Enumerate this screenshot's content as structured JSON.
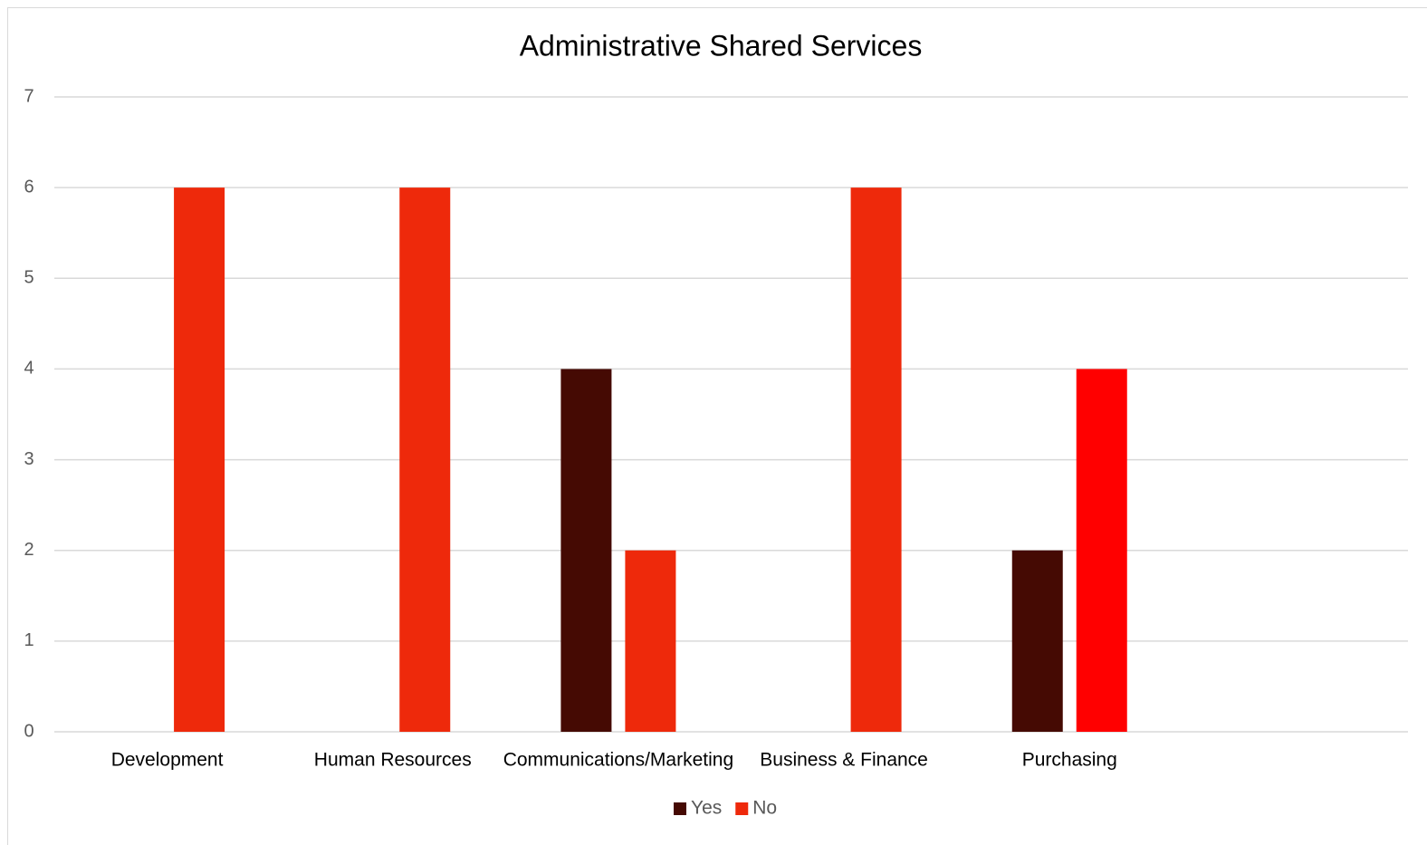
{
  "chart_data": {
    "type": "bar",
    "title": "Administrative Shared Services",
    "categories": [
      "Development",
      "Human Resources",
      "Communications/Marketing",
      "Business & Finance",
      "Purchasing",
      null
    ],
    "series": [
      {
        "name": "Yes",
        "color": "#450a03",
        "values": [
          0,
          0,
          4,
          0,
          2,
          null
        ]
      },
      {
        "name": "No",
        "color": "#ee290b",
        "colors": [
          "#ee290b",
          "#ee290b",
          "#ee290b",
          "#ee290b",
          "#ff0000",
          "#ee290b"
        ],
        "values": [
          6,
          6,
          2,
          6,
          4,
          null
        ]
      }
    ],
    "ylim": [
      0,
      7
    ],
    "yticks": [
      0,
      1,
      2,
      3,
      4,
      5,
      6,
      7
    ],
    "grid": true,
    "legend": "bottom"
  }
}
